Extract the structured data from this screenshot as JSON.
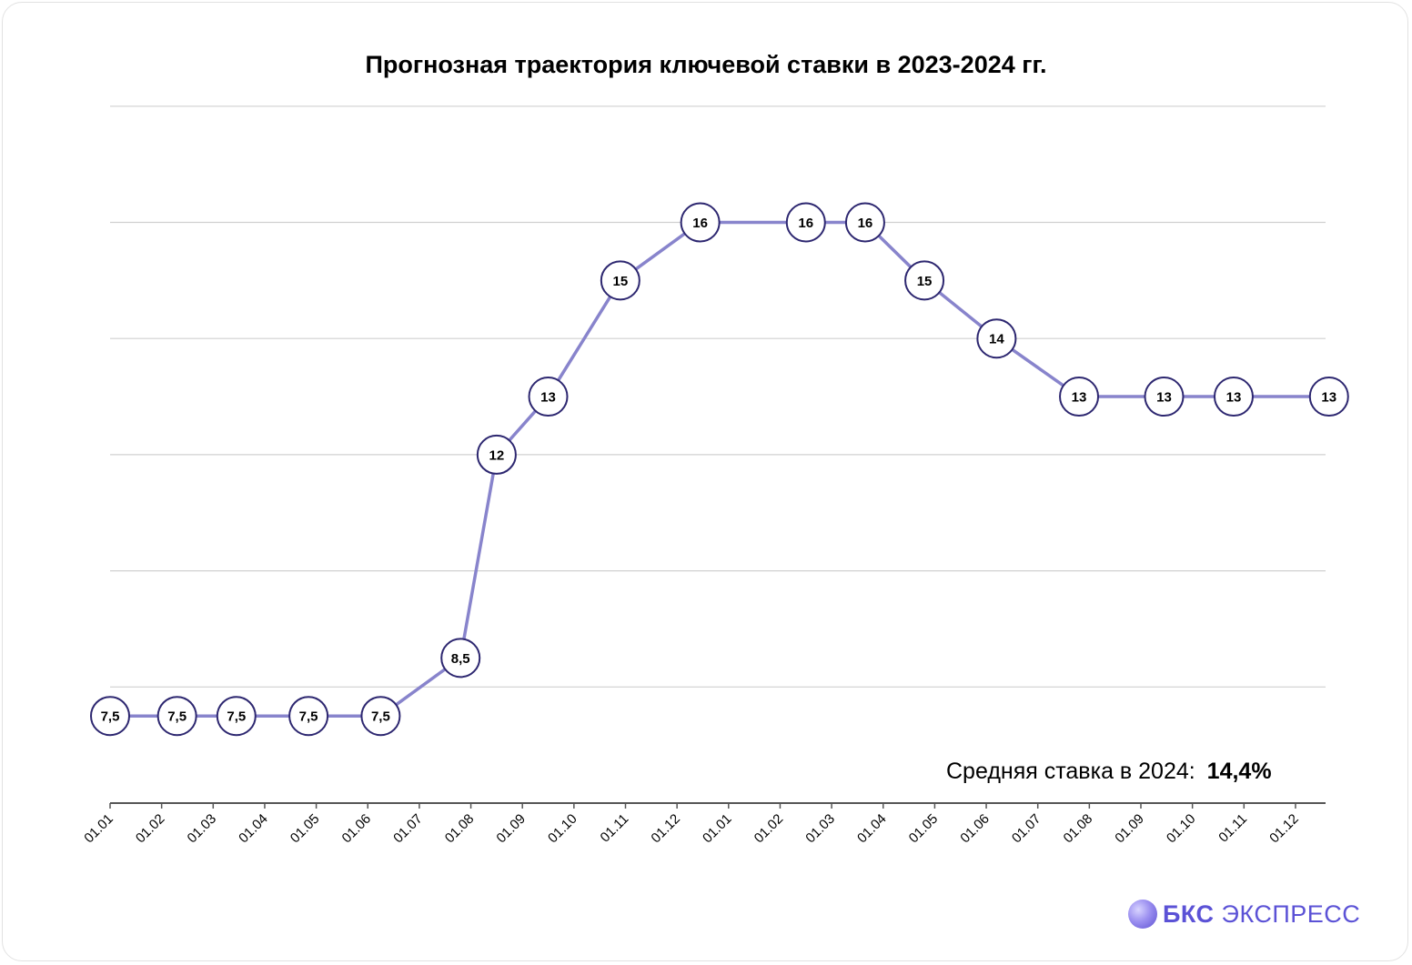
{
  "chart_data": {
    "type": "line",
    "title": "Прогнозная траектория ключевой ставки в 2023-2024 гг.",
    "categories": [
      "01.01",
      "01.02",
      "01.03",
      "01.04",
      "01.05",
      "01.06",
      "01.07",
      "01.08",
      "01.09",
      "01.10",
      "01.11",
      "01.12",
      "01.01",
      "01.02",
      "01.03",
      "01.04",
      "01.05",
      "01.06",
      "01.07",
      "01.08",
      "01.09",
      "01.10",
      "01.11",
      "01.12"
    ],
    "points": [
      {
        "x": 0.0,
        "y": 7.5,
        "label": "7,5"
      },
      {
        "x": 1.3,
        "y": 7.5,
        "label": "7,5"
      },
      {
        "x": 2.45,
        "y": 7.5,
        "label": "7,5"
      },
      {
        "x": 3.85,
        "y": 7.5,
        "label": "7,5"
      },
      {
        "x": 5.25,
        "y": 7.5,
        "label": "7,5"
      },
      {
        "x": 6.8,
        "y": 8.5,
        "label": "8,5"
      },
      {
        "x": 7.5,
        "y": 12,
        "label": "12"
      },
      {
        "x": 8.5,
        "y": 13,
        "label": "13"
      },
      {
        "x": 9.9,
        "y": 15,
        "label": "15"
      },
      {
        "x": 11.45,
        "y": 16,
        "label": "16"
      },
      {
        "x": 13.5,
        "y": 16,
        "label": "16"
      },
      {
        "x": 14.65,
        "y": 16,
        "label": "16"
      },
      {
        "x": 15.8,
        "y": 15,
        "label": "15"
      },
      {
        "x": 17.2,
        "y": 14,
        "label": "14"
      },
      {
        "x": 18.8,
        "y": 13,
        "label": "13"
      },
      {
        "x": 20.45,
        "y": 13,
        "label": "13"
      },
      {
        "x": 21.8,
        "y": 13,
        "label": "13"
      },
      {
        "x": 23.65,
        "y": 13,
        "label": "13"
      }
    ],
    "ylim": [
      6,
      17
    ],
    "gridlines": [
      8,
      10,
      12,
      14,
      16,
      18
    ],
    "grid": true,
    "y_tick_labels_shown": false,
    "line_color": "#8884cc",
    "marker_border_color": "#2d2770",
    "gridline_color": "#d0d0d0",
    "axis_color": "#555555"
  },
  "annotation": {
    "label": "Средняя ставка в 2024:",
    "value": "14,4%"
  },
  "brand": {
    "prefix": "БКС",
    "suffix": "ЭКСПРЕСС",
    "color": "#5b52d6"
  }
}
